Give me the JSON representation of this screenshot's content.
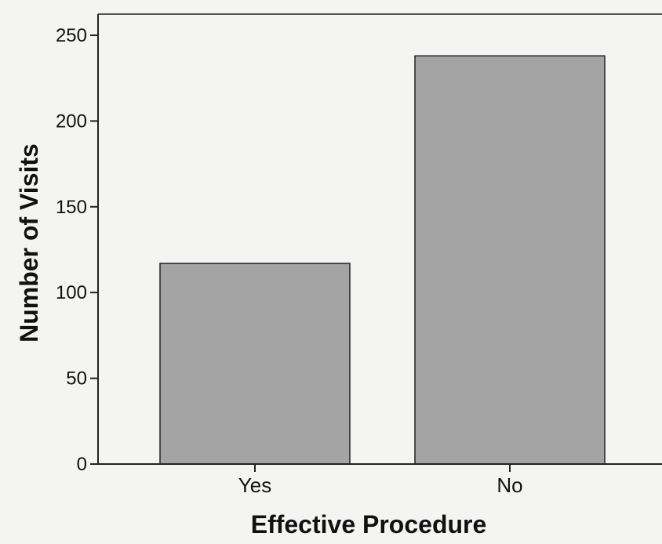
{
  "chart_data": {
    "type": "bar",
    "title": "",
    "xlabel": "Effective Procedure",
    "ylabel": "Number of Visits",
    "categories": [
      "Yes",
      "No"
    ],
    "values": [
      117,
      238
    ],
    "ylim": [
      0,
      250
    ],
    "yticks": [
      0,
      50,
      100,
      150,
      200,
      250
    ],
    "grid": false,
    "legend": "none",
    "colors": {
      "bar_fill": "#a4a4a4",
      "bar_stroke": "#222222",
      "axis": "#222222",
      "background": "#f4f5f3"
    }
  }
}
